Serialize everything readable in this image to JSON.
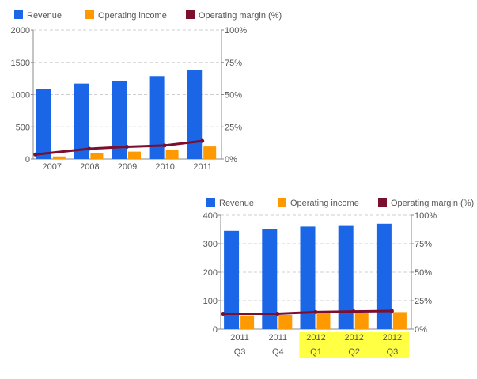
{
  "colors": {
    "revenue": "#1a66e6",
    "operating_income": "#ff9900",
    "operating_margin": "#7a0f2e",
    "grid": "#cfcfcf",
    "axis": "#888888",
    "highlight": "#ffff44"
  },
  "chart_data": [
    {
      "type": "bar",
      "categories": [
        "2007",
        "2008",
        "2009",
        "2010",
        "2011"
      ],
      "category_lines": [
        [
          "2007"
        ],
        [
          "2008"
        ],
        [
          "2009"
        ],
        [
          "2010"
        ],
        [
          "2011"
        ]
      ],
      "series": [
        {
          "name": "Revenue",
          "values": [
            1090,
            1170,
            1215,
            1285,
            1380
          ]
        },
        {
          "name": "Operating income",
          "values": [
            40,
            90,
            115,
            135,
            195
          ]
        },
        {
          "name": "Operating margin (%)",
          "type": "line",
          "axis": "right",
          "values": [
            3.5,
            8,
            9.5,
            10.5,
            14
          ]
        }
      ],
      "y_left": {
        "lim": [
          0,
          2000
        ],
        "ticks": [
          "0",
          "500",
          "1000",
          "1500",
          "2000"
        ]
      },
      "y_right": {
        "lim": [
          0,
          100
        ],
        "ticks": [
          "0%",
          "25%",
          "50%",
          "75%",
          "100%"
        ]
      },
      "grid": true,
      "legend": "top-left",
      "highlighted": []
    },
    {
      "type": "bar",
      "categories": [
        "2011 Q3",
        "2011 Q4",
        "2012 Q1",
        "2012 Q2",
        "2012 Q3"
      ],
      "category_lines": [
        [
          "2011",
          "Q3"
        ],
        [
          "2011",
          "Q4"
        ],
        [
          "2012",
          "Q1"
        ],
        [
          "2012",
          "Q2"
        ],
        [
          "2012",
          "Q3"
        ]
      ],
      "series": [
        {
          "name": "Revenue",
          "values": [
            345,
            352,
            360,
            365,
            370
          ]
        },
        {
          "name": "Operating income",
          "values": [
            48,
            50,
            57,
            58,
            60
          ]
        },
        {
          "name": "Operating margin (%)",
          "type": "line",
          "axis": "right",
          "values": [
            13.5,
            13.5,
            15,
            15.5,
            16
          ]
        }
      ],
      "y_left": {
        "lim": [
          0,
          400
        ],
        "ticks": [
          "0",
          "100",
          "200",
          "300",
          "400"
        ]
      },
      "y_right": {
        "lim": [
          0,
          100
        ],
        "ticks": [
          "0%",
          "25%",
          "50%",
          "75%",
          "100%"
        ]
      },
      "grid": true,
      "legend": "top",
      "highlighted": [
        2,
        3,
        4
      ]
    }
  ]
}
